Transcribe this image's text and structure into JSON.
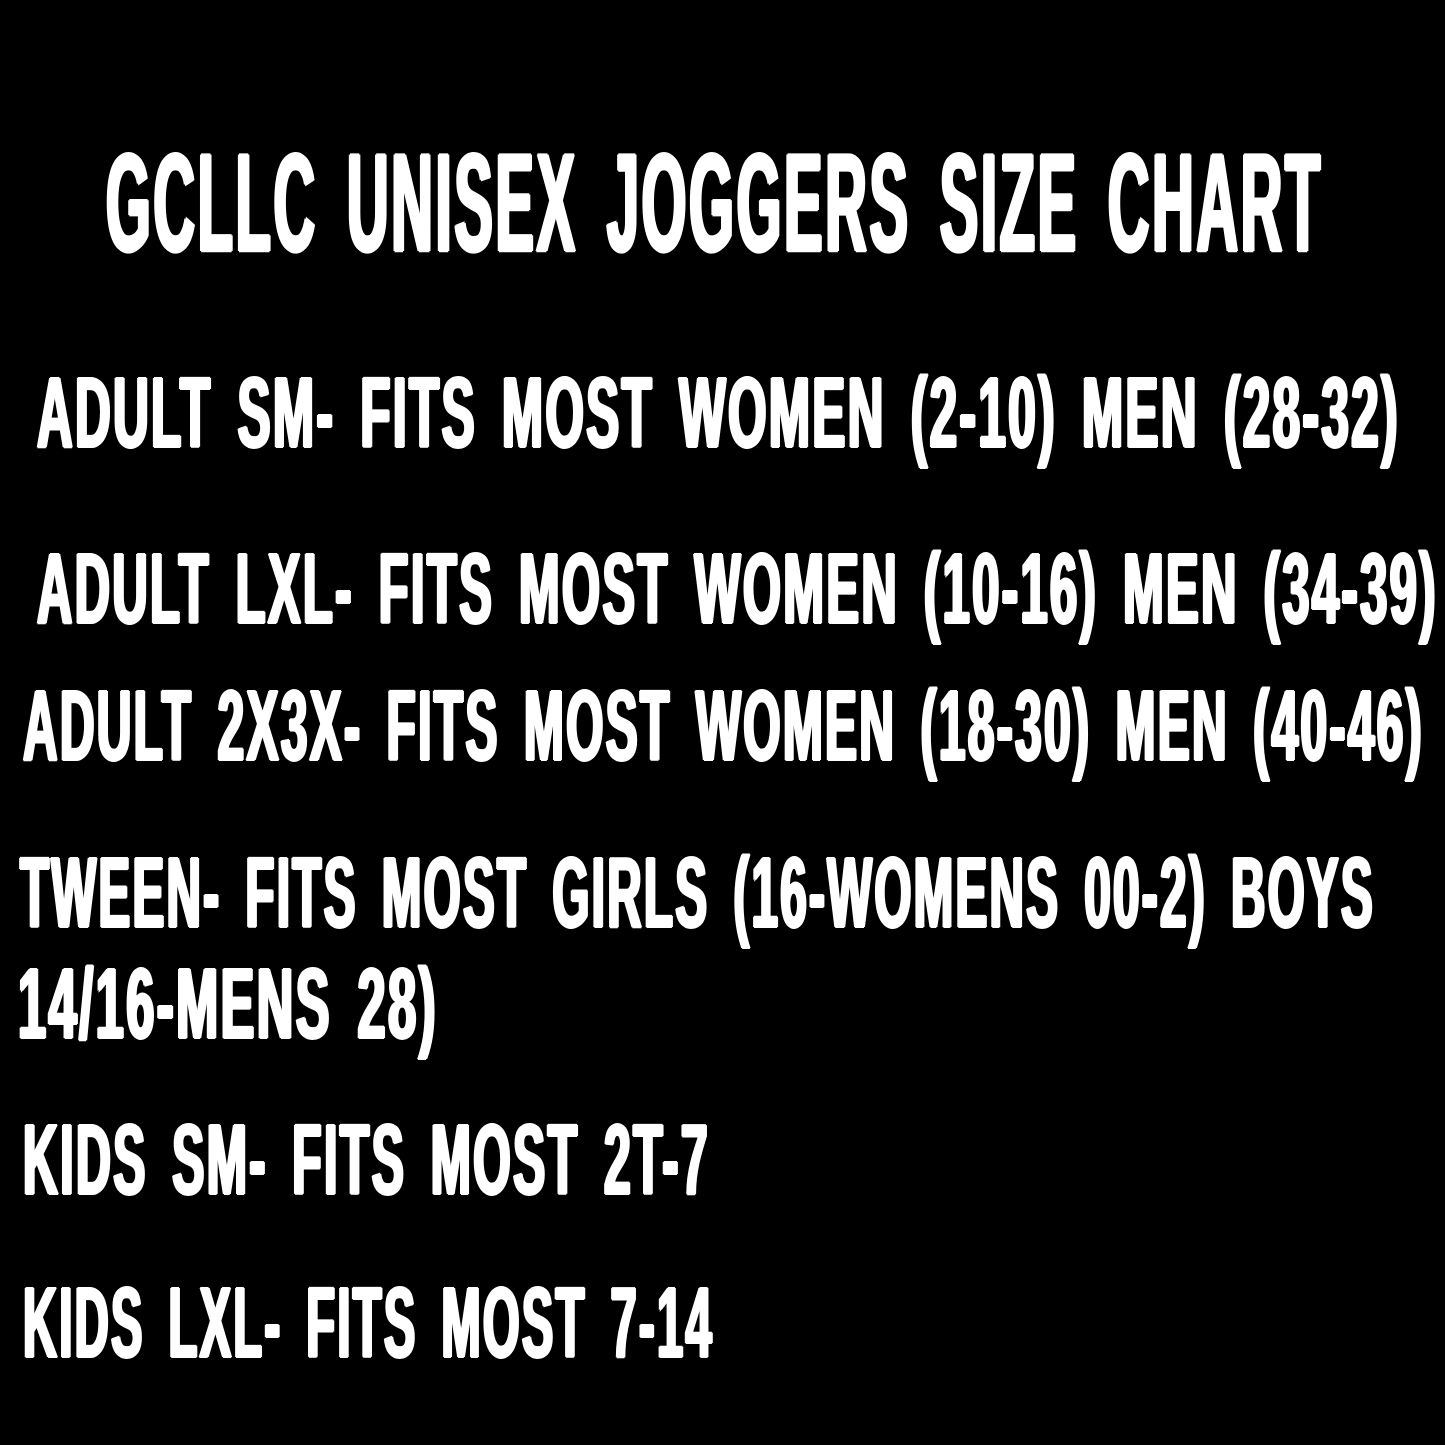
{
  "canvas": {
    "background_color": "#000000",
    "text_color": "#ffffff"
  },
  "title": {
    "text": "GCLLC UNISEX JOGGERS SIZE CHART"
  },
  "size_chart": {
    "lines": [
      {
        "text": "ADULT SM- FITS MOST WOMEN (2-10) MEN (28-32)"
      },
      {
        "text": "ADULT LXL- FITS MOST WOMEN (10-16) MEN (34-39)"
      },
      {
        "text": "ADULT 2X3X- FITS MOST WOMEN (18-30) MEN (40-46)"
      },
      {
        "text": "TWEEN- FITS MOST GIRLS (16-WOMENS 00-2) BOYS"
      },
      {
        "text": "14/16-MENS 28)"
      },
      {
        "text": "KIDS SM- FITS MOST 2T-7"
      },
      {
        "text": "KIDS LXL- FITS MOST 7-14"
      }
    ],
    "rows": [
      {
        "size": "ADULT SM",
        "fits": "FITS MOST WOMEN (2-10) MEN (28-32)"
      },
      {
        "size": "ADULT LXL",
        "fits": "FITS MOST WOMEN (10-16) MEN (34-39)"
      },
      {
        "size": "ADULT 2X3X",
        "fits": "FITS MOST WOMEN (18-30) MEN (40-46)"
      },
      {
        "size": "TWEEN",
        "fits": "FITS MOST GIRLS (16-WOMENS 00-2) BOYS 14/16-MENS 28)"
      },
      {
        "size": "KIDS SM",
        "fits": "FITS MOST 2T-7"
      },
      {
        "size": "KIDS LXL",
        "fits": "FITS MOST 7-14"
      }
    ]
  }
}
